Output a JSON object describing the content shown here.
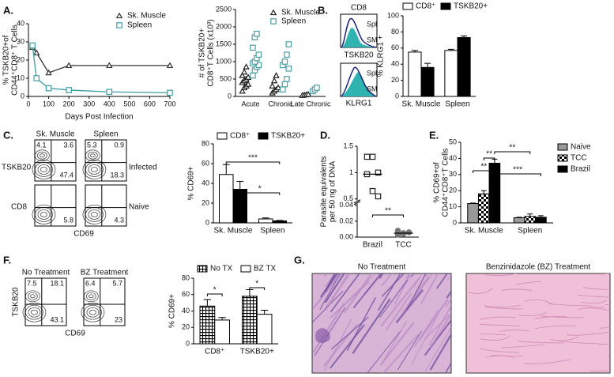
{
  "panel_labels": [
    "A.",
    "B.",
    "C.",
    "D.",
    "E.",
    "F.",
    "G."
  ],
  "chart_data": [
    {
      "type": "line",
      "ylabel": [
        "% TSKB20+of",
        "CD44⁺CD8⁺ T Cells"
      ],
      "xlabel": "Days Post Infection",
      "x": [
        20,
        40,
        100,
        200,
        400,
        700
      ],
      "xlim": [
        0,
        700
      ],
      "xticks": [
        0,
        100,
        200,
        300,
        400,
        500,
        600,
        700
      ],
      "ylim": [
        0,
        40
      ],
      "yticks": [
        0,
        10,
        20,
        30,
        40
      ],
      "series": [
        {
          "name": "Sk. Muscle",
          "color": "#333333",
          "marker": "triangle",
          "values": [
            27,
            24,
            13,
            17,
            17,
            17
          ]
        },
        {
          "name": "Spleen",
          "color": "#3a9ea5",
          "marker": "square",
          "values": [
            28,
            10,
            4.5,
            3.5,
            2.5,
            2
          ]
        }
      ],
      "legend": "top-right"
    },
    {
      "type": "strip",
      "ylabel": [
        "# of TSKB20+",
        "CD8⁺T Cells (x10³)"
      ],
      "categories": [
        "Acute",
        "Chronic",
        "Late Chronic"
      ],
      "ylim": [
        0,
        2500
      ],
      "yticks": [
        0,
        500,
        1000,
        1500,
        2000,
        2500
      ],
      "series": [
        {
          "name": "Sk. Muscle",
          "color": "#222222",
          "marker": "triangle",
          "values": [
            [
              150,
              250,
              300,
              350,
              400,
              450,
              500,
              550,
              600,
              700,
              850
            ],
            [
              100,
              150,
              200,
              250,
              300,
              450,
              600
            ],
            [
              30,
              40,
              50,
              60
            ]
          ]
        },
        {
          "name": "Spleen",
          "color": "#4a9ea5",
          "marker": "square",
          "values": [
            [
              600,
              750,
              850,
              900,
              950,
              1000,
              1100,
              1200,
              1400,
              1700,
              1800
            ],
            [
              200,
              350,
              500,
              800,
              900,
              1000,
              1200,
              1500
            ],
            [
              150,
              200,
              250
            ]
          ]
        }
      ],
      "legend": "top-right"
    },
    {
      "type": "bar",
      "ylabel": "% KLRG1 +",
      "categories": [
        "Sk. Muscle",
        "Spleen"
      ],
      "ylim": [
        0,
        100
      ],
      "yticks": [
        0,
        20,
        40,
        60,
        80,
        100
      ],
      "series": [
        {
          "name": "CD8⁺",
          "color": "#ffffff",
          "values": [
            55,
            57
          ],
          "errors": [
            2,
            1.5
          ]
        },
        {
          "name": "TSKB20+",
          "color": "#000000",
          "values": [
            36,
            73
          ],
          "errors": [
            5,
            2
          ]
        }
      ],
      "legend": "top"
    },
    {
      "type": "bar",
      "ylabel": "% CD69+",
      "categories": [
        "Sk. Muscle",
        "Spleen"
      ],
      "ylim": [
        0,
        80
      ],
      "yticks": [
        0,
        20,
        40,
        60,
        80
      ],
      "series": [
        {
          "name": "CD8⁺",
          "color": "#ffffff",
          "values": [
            49,
            4
          ],
          "errors": [
            10,
            1
          ]
        },
        {
          "name": "TSKB20+",
          "color": "#000000",
          "values": [
            34,
            2
          ],
          "errors": [
            8,
            0.5
          ]
        }
      ],
      "legend": "top",
      "annotations": [
        "***",
        "*"
      ]
    },
    {
      "type": "dot",
      "ylabel": [
        "Parasite equivalents",
        "per 50 ng of DNA"
      ],
      "categories": [
        "Brazil",
        "TCC"
      ],
      "ylim": [
        0,
        1.5
      ],
      "ybreak": [
        0.04,
        0.5
      ],
      "yticks": [
        {
          "value": 0,
          "label": "0.00"
        },
        0.02,
        0.04,
        0.5,
        1,
        1.5
      ],
      "values": [
        [
          1.3,
          1.3,
          1.0,
          0.97,
          0.65,
          0.55
        ],
        [
          0.003,
          0.005,
          0.006,
          0.008,
          0.004
        ]
      ],
      "means": [
        0.97,
        0.005
      ],
      "markers": [
        "square",
        "circle"
      ],
      "colors": [
        "#222222",
        "#777777"
      ],
      "filled": [
        false,
        true
      ],
      "annotations": [
        "**"
      ]
    },
    {
      "type": "bar",
      "ylabel": [
        "% CD69+of",
        "CD44⁺CD8⁺T Cells"
      ],
      "categories": [
        "Sk. Muscle",
        "Spleen"
      ],
      "ylim": [
        0,
        50
      ],
      "yticks": [
        0,
        10,
        20,
        30,
        40,
        50
      ],
      "series": [
        {
          "name": "Naive",
          "color": "#999999",
          "values": [
            12,
            3.2
          ],
          "errors": [
            0.3,
            0.3
          ]
        },
        {
          "name": "TCC",
          "color": "#000000",
          "pattern": "checker",
          "values": [
            18,
            4
          ],
          "errors": [
            2,
            1.5
          ]
        },
        {
          "name": "Brazil",
          "color": "#000000",
          "values": [
            37,
            3.5
          ],
          "errors": [
            2.5,
            1
          ]
        }
      ],
      "legend": "right",
      "annotations": [
        "**",
        "**",
        "**",
        "***"
      ]
    },
    {
      "type": "bar",
      "ylabel": "% CD69+",
      "categories": [
        "CD8⁺",
        "TSKB20+"
      ],
      "ylim": [
        0,
        80
      ],
      "yticks": [
        0,
        20,
        40,
        60,
        80
      ],
      "series": [
        {
          "name": "No TX",
          "color": "#000000",
          "pattern": "grid",
          "values": [
            46,
            58
          ],
          "errors": [
            8,
            8
          ]
        },
        {
          "name": "BZ TX",
          "color": "#ffffff",
          "values": [
            29,
            36
          ],
          "errors": [
            3,
            5
          ]
        }
      ],
      "legend": "top",
      "annotations": [
        "*",
        "*"
      ]
    }
  ],
  "histograms": {
    "top_label": "CD8",
    "middle_label": "TSKB20",
    "bottom_label": "KLRG1",
    "plots": [
      {
        "labels": [
          "Spl",
          "SM"
        ]
      },
      {
        "labels": [
          "Spl",
          "SM"
        ]
      }
    ]
  },
  "flow_c": {
    "columns": [
      "Sk. Muscle",
      "Spleen"
    ],
    "rows": [
      "TSKB20",
      "CD8"
    ],
    "conditions": [
      "Infected",
      "Naive"
    ],
    "xlabel": "CD69",
    "plots": [
      {
        "ul": "4.1",
        "ur": "3.6",
        "lr": "47.4"
      },
      {
        "ul": "5.3",
        "ur": "0.9",
        "lr": "18.3"
      },
      {
        "lr": "5.8"
      },
      {
        "lr": "4.3"
      }
    ]
  },
  "flow_f": {
    "columns": [
      "No Treatment",
      "BZ Treatment"
    ],
    "ylabel": "TSKB20",
    "xlabel": "CD69",
    "plots": [
      {
        "ul": "7.5",
        "ur": "18.1",
        "lr": "43.1"
      },
      {
        "ul": "6.4",
        "ur": "5.7",
        "lr": "23"
      }
    ]
  },
  "histology": {
    "titles": [
      "No Treatment",
      "Benzinidazole (BZ) Treatment"
    ]
  }
}
